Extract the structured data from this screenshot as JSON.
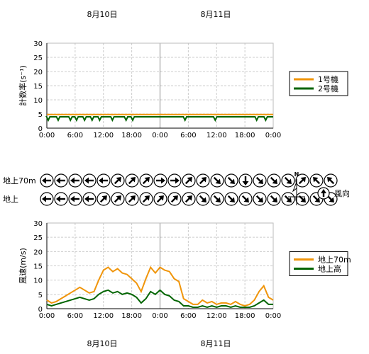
{
  "date_labels": [
    "8月10日",
    "8月11日"
  ],
  "time_ticks": [
    "0:00",
    "6:00",
    "12:00",
    "18:00",
    "0:00",
    "6:00",
    "12:00",
    "18:00",
    "0:00"
  ],
  "chart_data": [
    {
      "type": "line",
      "ylabel": "計数率(s⁻¹)",
      "ylim": [
        0,
        30
      ],
      "yticks": [
        0,
        5,
        10,
        15,
        20,
        25,
        30
      ],
      "x_unit": "hours",
      "xlim": [
        0,
        48
      ],
      "grid": true,
      "legend_position": "right",
      "series": [
        {
          "name": "1号機",
          "color": "#f0950a",
          "x": [
            0,
            48
          ],
          "values": [
            4.8,
            4.8
          ]
        },
        {
          "name": "2号機",
          "color": "#006400",
          "x": [
            0,
            48
          ],
          "values": [
            4.0,
            4.0
          ],
          "dips_at_hours": [
            0.3,
            2.4,
            5.0,
            6.3,
            8.0,
            9.6,
            11.2,
            13.9,
            16.8,
            18.2,
            29.3,
            35.7,
            44.5,
            46.4
          ],
          "dip_value": 2.8
        }
      ]
    },
    {
      "type": "line",
      "ylabel": "風速(m/s)",
      "ylim": [
        0,
        30
      ],
      "yticks": [
        0,
        5,
        10,
        15,
        20,
        25,
        30
      ],
      "x_unit": "hours",
      "xlim": [
        0,
        48
      ],
      "grid": true,
      "legend_position": "right",
      "series": [
        {
          "name": "地上70m",
          "color": "#f0950a",
          "x": [
            0,
            1,
            2,
            3,
            4,
            5,
            6,
            7,
            8,
            9,
            10,
            11,
            12,
            13,
            14,
            15,
            16,
            17,
            18,
            19,
            20,
            21,
            22,
            23,
            24,
            25,
            26,
            27,
            28,
            29,
            30,
            31,
            32,
            33,
            34,
            35,
            36,
            37,
            38,
            39,
            40,
            41,
            42,
            43,
            44,
            45,
            46,
            47,
            48
          ],
          "values": [
            3,
            2,
            2.5,
            3.5,
            4.5,
            5.5,
            6.5,
            7.5,
            6.5,
            5.5,
            6,
            10,
            13.5,
            14.5,
            13,
            14,
            12.5,
            12,
            10.5,
            9,
            6,
            10.5,
            14.5,
            12.5,
            14.5,
            13.5,
            13,
            10.5,
            9.5,
            3.5,
            2.5,
            1.5,
            1.5,
            3,
            2,
            2.5,
            1.5,
            2,
            2,
            1.5,
            2.5,
            1.5,
            1,
            1.5,
            3,
            6,
            8,
            4,
            3
          ]
        },
        {
          "name": "地上高",
          "color": "#006400",
          "x": [
            0,
            1,
            2,
            3,
            4,
            5,
            6,
            7,
            8,
            9,
            10,
            11,
            12,
            13,
            14,
            15,
            16,
            17,
            18,
            19,
            20,
            21,
            22,
            23,
            24,
            25,
            26,
            27,
            28,
            29,
            30,
            31,
            32,
            33,
            34,
            35,
            36,
            37,
            38,
            39,
            40,
            41,
            42,
            43,
            44,
            45,
            46,
            47,
            48
          ],
          "values": [
            1.5,
            1,
            1.5,
            2,
            2.5,
            3,
            3.5,
            4,
            3.5,
            3,
            3.5,
            5,
            6,
            6.5,
            5.5,
            6,
            5,
            5.5,
            5,
            4,
            2,
            3.5,
            6,
            5,
            6.5,
            5,
            4.5,
            3,
            2.5,
            1,
            1,
            0.5,
            0.5,
            1,
            0.5,
            1,
            0.5,
            1,
            1,
            0.5,
            1,
            0.5,
            0.5,
            0.5,
            1,
            2,
            3,
            1.5,
            1.5
          ]
        }
      ]
    }
  ],
  "wind_direction": {
    "rows": [
      {
        "label": "地上70m",
        "degrees": [
          270,
          270,
          270,
          270,
          270,
          45,
          45,
          45,
          90,
          90,
          45,
          45,
          135,
          135,
          180,
          135,
          135,
          135,
          45,
          315,
          315
        ]
      },
      {
        "label": "地上",
        "degrees": [
          270,
          270,
          270,
          270,
          45,
          45,
          45,
          45,
          45,
          45,
          45,
          135,
          135,
          135,
          135,
          135,
          135,
          135,
          135,
          135,
          135
        ]
      }
    ],
    "legend_label": "風向",
    "north_label": "N"
  }
}
